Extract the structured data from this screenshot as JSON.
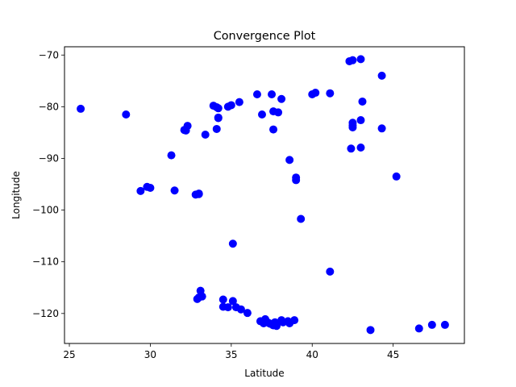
{
  "chart_data": {
    "type": "scatter",
    "title": "Convergence Plot",
    "xlabel": "Latitude",
    "ylabel": "Longitude",
    "xlim": [
      24.7,
      49.4
    ],
    "ylim": [
      -125.8,
      -68.4
    ],
    "xticks": [
      25,
      30,
      35,
      40,
      45
    ],
    "yticks": [
      -70,
      -80,
      -90,
      -100,
      -110,
      -120
    ],
    "xtick_labels": [
      "25",
      "30",
      "35",
      "40",
      "45"
    ],
    "ytick_labels": [
      "−70",
      "−80",
      "−90",
      "−100",
      "−110",
      "−120"
    ],
    "grid": false,
    "marker_color": "#0000ff",
    "series": [
      {
        "points": [
          [
            25.7,
            -80.4
          ],
          [
            28.5,
            -81.5
          ],
          [
            29.4,
            -96.3
          ],
          [
            29.8,
            -95.5
          ],
          [
            30.0,
            -95.7
          ],
          [
            31.3,
            -89.4
          ],
          [
            31.5,
            -96.2
          ],
          [
            32.1,
            -84.5
          ],
          [
            32.2,
            -84.6
          ],
          [
            32.3,
            -83.7
          ],
          [
            32.8,
            -97.0
          ],
          [
            33.0,
            -96.9
          ],
          [
            33.0,
            -96.8
          ],
          [
            33.4,
            -85.4
          ],
          [
            33.9,
            -79.8
          ],
          [
            34.1,
            -84.3
          ],
          [
            34.1,
            -80.1
          ],
          [
            34.2,
            -80.3
          ],
          [
            34.2,
            -82.1
          ],
          [
            34.2,
            -82.2
          ],
          [
            34.8,
            -80.0
          ],
          [
            35.0,
            -79.7
          ],
          [
            35.5,
            -79.1
          ],
          [
            36.6,
            -77.6
          ],
          [
            36.9,
            -81.5
          ],
          [
            37.5,
            -77.6
          ],
          [
            37.6,
            -80.9
          ],
          [
            37.6,
            -84.4
          ],
          [
            37.9,
            -81.1
          ],
          [
            38.1,
            -78.5
          ],
          [
            38.6,
            -90.3
          ],
          [
            39.0,
            -93.7
          ],
          [
            39.0,
            -94.2
          ],
          [
            39.3,
            -101.7
          ],
          [
            40.0,
            -77.6
          ],
          [
            40.2,
            -77.3
          ],
          [
            41.1,
            -77.4
          ],
          [
            41.1,
            -111.9
          ],
          [
            42.3,
            -71.2
          ],
          [
            42.4,
            -88.1
          ],
          [
            42.5,
            -71.0
          ],
          [
            42.5,
            -83.1
          ],
          [
            42.5,
            -83.6
          ],
          [
            42.5,
            -84.0
          ],
          [
            43.0,
            -70.8
          ],
          [
            43.0,
            -87.9
          ],
          [
            43.0,
            -82.6
          ],
          [
            43.1,
            -79.0
          ],
          [
            44.3,
            -74.0
          ],
          [
            44.3,
            -84.2
          ],
          [
            45.2,
            -93.5
          ],
          [
            35.1,
            -106.5
          ],
          [
            33.1,
            -115.6
          ],
          [
            33.2,
            -116.7
          ],
          [
            33.0,
            -116.9
          ],
          [
            32.9,
            -117.2
          ],
          [
            34.5,
            -117.3
          ],
          [
            34.5,
            -118.7
          ],
          [
            34.8,
            -118.8
          ],
          [
            35.1,
            -117.6
          ],
          [
            35.3,
            -118.8
          ],
          [
            35.6,
            -119.2
          ],
          [
            36.0,
            -119.9
          ],
          [
            36.8,
            -121.5
          ],
          [
            37.0,
            -121.9
          ],
          [
            37.1,
            -121.1
          ],
          [
            37.3,
            -121.8
          ],
          [
            37.4,
            -122.0
          ],
          [
            37.6,
            -122.3
          ],
          [
            37.8,
            -122.4
          ],
          [
            37.7,
            -121.7
          ],
          [
            38.1,
            -121.3
          ],
          [
            38.2,
            -121.7
          ],
          [
            38.5,
            -121.5
          ],
          [
            38.6,
            -121.9
          ],
          [
            38.9,
            -121.3
          ],
          [
            43.6,
            -123.2
          ],
          [
            46.6,
            -122.9
          ],
          [
            47.4,
            -122.2
          ],
          [
            48.2,
            -122.2
          ]
        ]
      }
    ]
  }
}
